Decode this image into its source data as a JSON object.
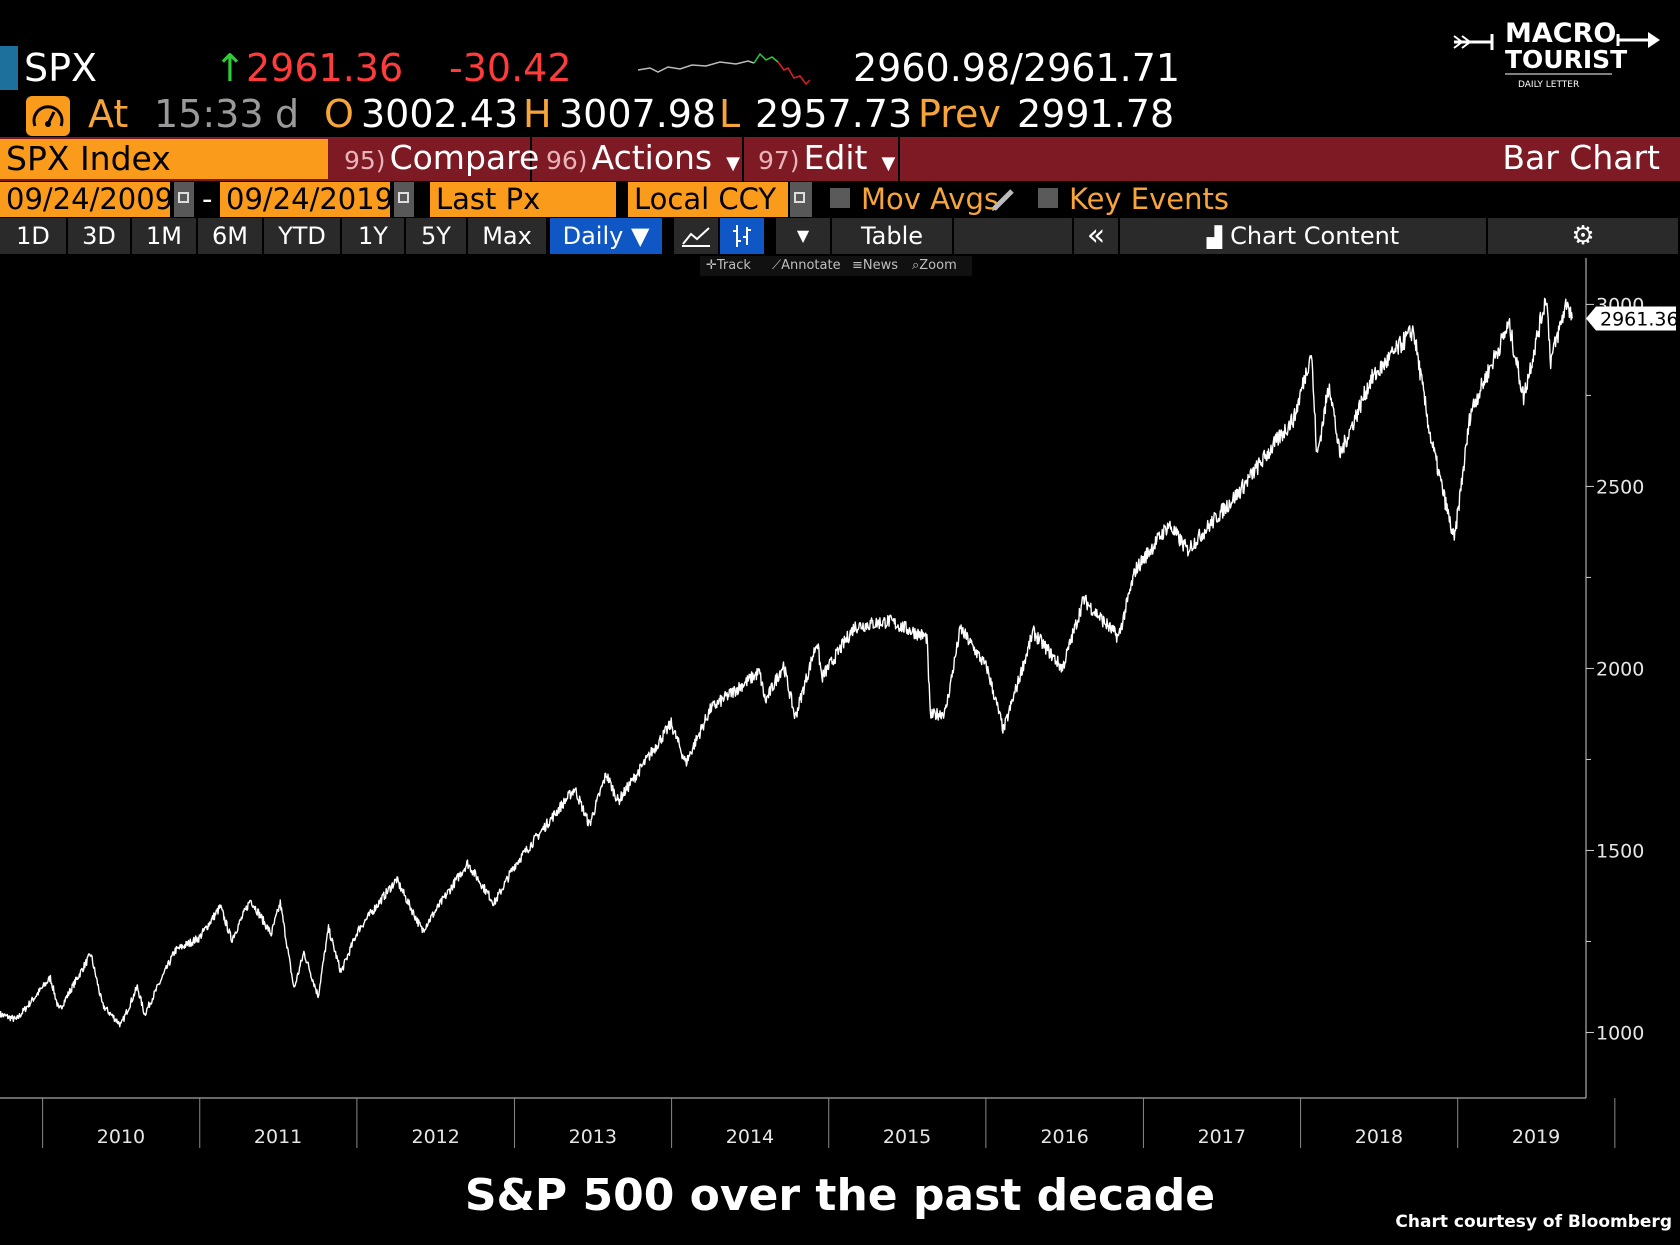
{
  "quote": {
    "ticker": "SPX",
    "arrow": "↑",
    "last": "2961.36",
    "change": "-30.42",
    "bid_ask": "2960.98/2961.71",
    "at_label": "At",
    "time": "15:33",
    "time_suffix": "d",
    "open_label": "O",
    "open": "3002.43",
    "high_label": "H",
    "high": "3007.98",
    "low_label": "L",
    "low": "2957.73",
    "prev_label": "Prev",
    "prev": "2991.78"
  },
  "logo": {
    "line1": "MACRO",
    "line2": "TOURIST",
    "line3": "DAILY LETTER"
  },
  "toolbar": {
    "security": "SPX Index",
    "compare_num": "95)",
    "compare": "Compare",
    "actions_num": "96)",
    "actions": "Actions",
    "edit_num": "97)",
    "edit": "Edit",
    "chart_type": "Bar Chart",
    "start_date": "09/24/2009",
    "dash": "-",
    "end_date": "09/24/2019",
    "price_field": "Last Px",
    "currency": "Local CCY",
    "mov_avgs": "Mov Avgs",
    "key_events": "Key Events",
    "periods": [
      "1D",
      "3D",
      "1M",
      "6M",
      "YTD",
      "1Y",
      "5Y",
      "Max"
    ],
    "frequency": "Daily ▼",
    "table": "Table",
    "chart_content": "Chart Content",
    "tools": [
      "Track",
      "Annotate",
      "News",
      "Zoom"
    ]
  },
  "colors": {
    "amber": "#fb9b1b",
    "title_bar": "#7e1a24",
    "active_button": "#0e57c5",
    "up": "#2fcc3a",
    "down": "#ff3b3b"
  },
  "chart_data": {
    "type": "line",
    "series": [],
    "last_value_label": "2961.36",
    "x_ticks": [
      "2010",
      "2011",
      "2012",
      "2013",
      "2014",
      "2015",
      "2016",
      "2017",
      "2018",
      "2019"
    ],
    "y_ticks": [
      1000,
      1500,
      2000,
      2500,
      3000
    ],
    "ylim": [
      820,
      3100
    ],
    "x": [
      "2009-09-24",
      "2009-11-01",
      "2010-01-19",
      "2010-02-08",
      "2010-04-23",
      "2010-05-20",
      "2010-07-02",
      "2010-08-09",
      "2010-08-26",
      "2010-11-05",
      "2010-12-31",
      "2011-02-18",
      "2011-03-16",
      "2011-04-29",
      "2011-06-16",
      "2011-07-07",
      "2011-08-08",
      "2011-08-31",
      "2011-10-03",
      "2011-10-27",
      "2011-11-25",
      "2012-01-03",
      "2012-04-02",
      "2012-06-01",
      "2012-09-14",
      "2012-11-15",
      "2013-01-02",
      "2013-05-21",
      "2013-06-24",
      "2013-08-02",
      "2013-08-30",
      "2013-12-31",
      "2014-02-03",
      "2014-04-02",
      "2014-07-24",
      "2014-08-07",
      "2014-09-18",
      "2014-10-15",
      "2014-12-05",
      "2014-12-16",
      "2015-03-02",
      "2015-05-21",
      "2015-08-17",
      "2015-08-25",
      "2015-09-29",
      "2015-11-03",
      "2016-01-04",
      "2016-02-11",
      "2016-04-20",
      "2016-06-27",
      "2016-08-15",
      "2016-11-04",
      "2016-12-13",
      "2017-03-01",
      "2017-04-13",
      "2017-08-08",
      "2017-12-18",
      "2018-01-26",
      "2018-02-08",
      "2018-03-09",
      "2018-04-02",
      "2018-06-12",
      "2018-09-20",
      "2018-10-29",
      "2018-12-24",
      "2019-01-31",
      "2019-04-30",
      "2019-06-03",
      "2019-07-26",
      "2019-08-05",
      "2019-09-12",
      "2019-09-24"
    ],
    "close": [
      1050,
      1035,
      1150,
      1060,
      1215,
      1075,
      1020,
      1125,
      1050,
      1225,
      1260,
      1345,
      1255,
      1365,
      1270,
      1355,
      1120,
      1220,
      1100,
      1285,
      1165,
      1280,
      1420,
      1280,
      1465,
      1355,
      1460,
      1670,
      1570,
      1710,
      1635,
      1848,
      1740,
      1890,
      1990,
      1910,
      2010,
      1865,
      2075,
      1975,
      2115,
      2130,
      2085,
      1870,
      1880,
      2110,
      2000,
      1830,
      2100,
      2000,
      2190,
      2085,
      2270,
      2395,
      2325,
      2480,
      2690,
      2870,
      2580,
      2785,
      2585,
      2790,
      2930,
      2640,
      2350,
      2705,
      2945,
      2745,
      3025,
      2845,
      3010,
      2961.36
    ]
  }
}
